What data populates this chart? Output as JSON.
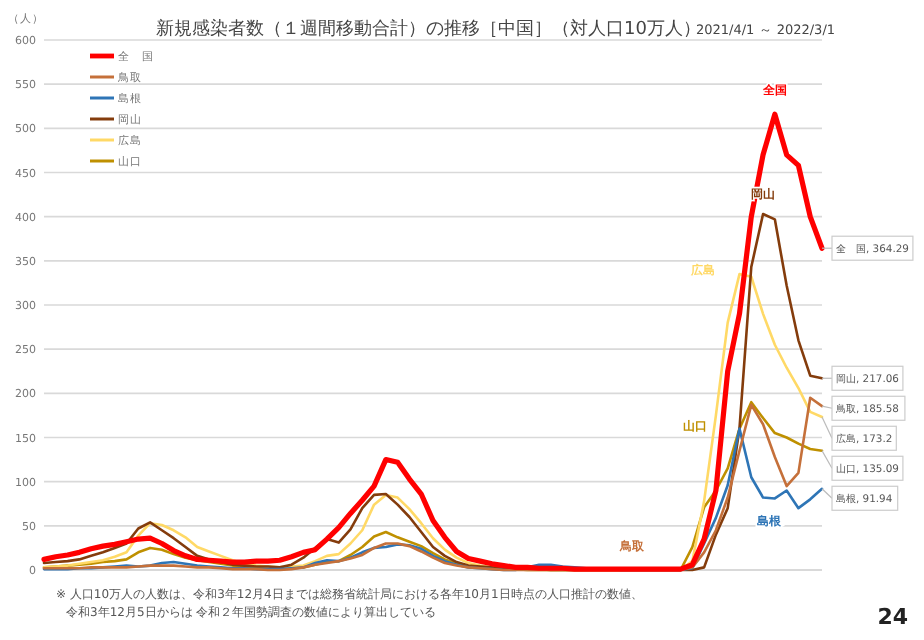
{
  "chart_data": {
    "type": "line",
    "title": "新規感染者数（１週間移動合計）の推移［中国］（対人口10万人）",
    "subtitle": "2021/4/1 ～ 2022/3/1",
    "ylabel": "（人）",
    "categories": [
      null,
      null,
      null,
      null,
      null,
      null,
      null,
      null,
      null,
      null,
      null,
      null,
      null,
      null,
      null,
      null,
      null,
      null,
      null,
      null,
      null,
      null,
      null,
      null,
      null,
      null,
      null,
      null,
      null,
      null,
      null,
      null,
      null,
      null,
      null,
      null,
      null,
      null,
      null,
      null,
      null,
      null,
      null,
      null,
      null,
      null,
      null,
      null,
      null,
      null,
      null,
      null,
      null,
      null,
      null,
      null,
      null,
      null,
      null,
      null,
      null,
      null,
      null,
      null,
      null,
      null,
      null
    ],
    "ylim": [
      0,
      600
    ],
    "yticks": [
      0,
      50,
      100,
      150,
      200,
      250,
      300,
      350,
      400,
      450,
      500,
      550,
      600
    ],
    "grid": "y",
    "legend": "top left",
    "series": [
      {
        "name": "全　国",
        "color": "#ff0000",
        "values": [
          12,
          15,
          17,
          20,
          24,
          27,
          29,
          32,
          35,
          36,
          30,
          22,
          16,
          12,
          11,
          10,
          9,
          9,
          10,
          10,
          11,
          15,
          20,
          23,
          35,
          48,
          64,
          79,
          95,
          125,
          122,
          103,
          86,
          56,
          37,
          21,
          13,
          10,
          7,
          5,
          3,
          3,
          2,
          2,
          2,
          1,
          1,
          1,
          1,
          1,
          1,
          1,
          1,
          1,
          1,
          6,
          35,
          90,
          225,
          290,
          400,
          470,
          516,
          470,
          458,
          400,
          364.29
        ]
      },
      {
        "name": "鳥取",
        "color": "#c5703a",
        "values": [
          2,
          2,
          2,
          2,
          3,
          3,
          3,
          3,
          4,
          5,
          5,
          5,
          4,
          3,
          3,
          2,
          1,
          1,
          1,
          0,
          0,
          1,
          3,
          6,
          8,
          10,
          13,
          17,
          25,
          30,
          30,
          27,
          21,
          14,
          8,
          5,
          3,
          2,
          1,
          0,
          0,
          0,
          0,
          0,
          0,
          0,
          0,
          0,
          0,
          0,
          0,
          0,
          0,
          0,
          0,
          3,
          20,
          45,
          82,
          135,
          187,
          165,
          128,
          95,
          110,
          195,
          185.58
        ]
      },
      {
        "name": "島根",
        "color": "#2e75b6",
        "values": [
          1,
          1,
          1,
          2,
          2,
          3,
          4,
          5,
          4,
          5,
          8,
          9,
          7,
          5,
          4,
          3,
          2,
          2,
          1,
          1,
          1,
          2,
          3,
          8,
          11,
          10,
          14,
          20,
          25,
          26,
          29,
          28,
          24,
          16,
          10,
          6,
          3,
          2,
          1,
          0,
          0,
          3,
          6,
          6,
          4,
          3,
          2,
          1,
          1,
          0,
          0,
          0,
          0,
          0,
          0,
          2,
          30,
          59,
          96,
          160,
          105,
          82,
          81,
          90,
          70,
          80,
          91.94
        ]
      },
      {
        "name": "岡山",
        "color": "#843c0c",
        "values": [
          8,
          9,
          10,
          12,
          16,
          20,
          25,
          30,
          47,
          54,
          45,
          36,
          26,
          16,
          12,
          9,
          6,
          5,
          4,
          4,
          3,
          6,
          14,
          25,
          35,
          31,
          46,
          70,
          85,
          86,
          74,
          60,
          43,
          26,
          16,
          9,
          5,
          4,
          3,
          2,
          1,
          1,
          1,
          0,
          0,
          0,
          0,
          0,
          0,
          0,
          0,
          0,
          0,
          0,
          0,
          0,
          3,
          40,
          70,
          160,
          343,
          403,
          397,
          322,
          260,
          220,
          217.06
        ]
      },
      {
        "name": "広島",
        "color": "#ffd966",
        "values": [
          3,
          4,
          5,
          7,
          9,
          11,
          15,
          20,
          39,
          53,
          51,
          45,
          37,
          26,
          21,
          16,
          11,
          7,
          5,
          4,
          3,
          4,
          5,
          10,
          16,
          18,
          30,
          45,
          74,
          85,
          82,
          69,
          53,
          36,
          23,
          14,
          8,
          5,
          3,
          2,
          1,
          1,
          1,
          0,
          0,
          0,
          0,
          0,
          0,
          0,
          0,
          0,
          0,
          0,
          0,
          10,
          78,
          175,
          280,
          335,
          332,
          290,
          255,
          229,
          206,
          179,
          173.2
        ]
      },
      {
        "name": "山口",
        "color": "#bf9000",
        "values": [
          3,
          4,
          5,
          6,
          7,
          9,
          10,
          12,
          20,
          25,
          23,
          18,
          14,
          11,
          9,
          7,
          5,
          4,
          3,
          2,
          2,
          3,
          3,
          6,
          9,
          10,
          17,
          26,
          38,
          43,
          37,
          32,
          27,
          19,
          12,
          7,
          4,
          3,
          2,
          1,
          1,
          0,
          0,
          0,
          0,
          0,
          0,
          0,
          0,
          0,
          0,
          0,
          0,
          0,
          0,
          26,
          71,
          90,
          115,
          160,
          190,
          172,
          155,
          150,
          143,
          137,
          135.09
        ]
      }
    ],
    "annotations": [
      "全国",
      "鳥取",
      "島根",
      "岡山",
      "広島",
      "山口",
      "全　国, 364.29",
      "鳥取, 185.58",
      "島根, 91.94",
      "岡山, 217.06",
      "広島, 173.2",
      "山口, 135.09",
      "※ 人口10万人の人数は、令和3年12月4日までは総務省統計局における各年10月1日時点の人口推計の数値、",
      "令和3年12月5日からは 令和２年国勢調査の数値により算出している",
      "24"
    ]
  }
}
